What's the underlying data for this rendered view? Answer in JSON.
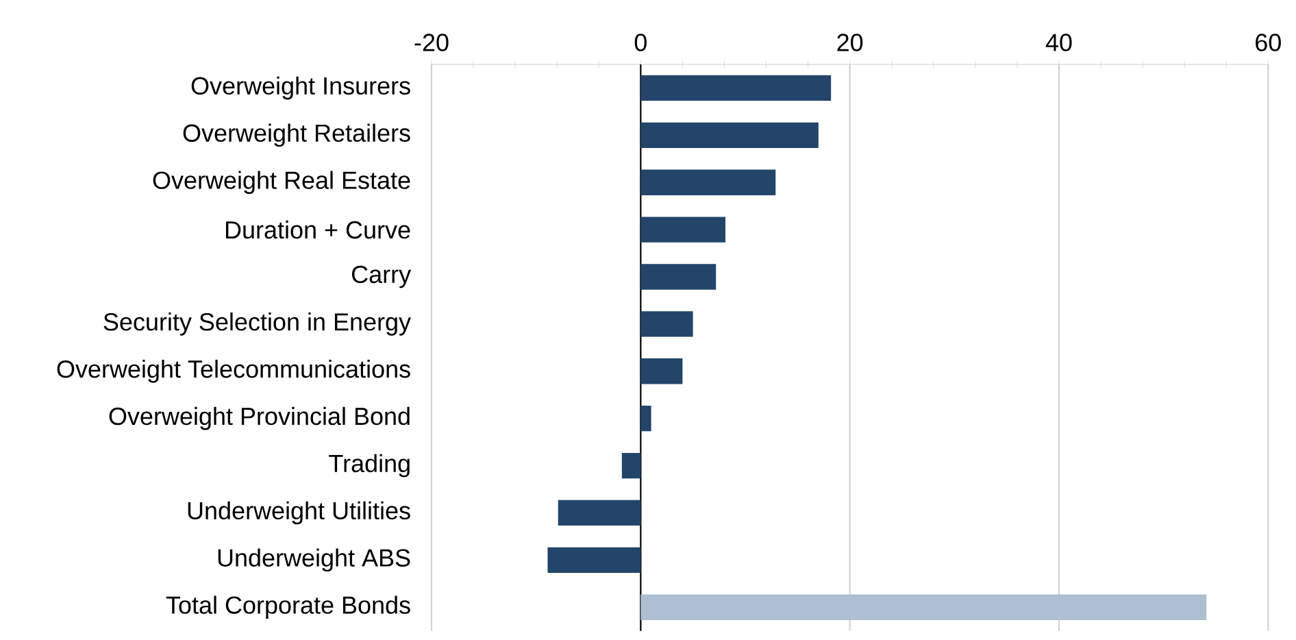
{
  "chart_data": {
    "type": "bar",
    "orientation": "horizontal",
    "categories": [
      "Overweight Insurers",
      "Overweight Retailers",
      "Overweight Real Estate",
      "Duration + Curve",
      "Carry",
      "Security Selection in Energy",
      "Overweight Telecommunications",
      "Overweight Provincial Bond",
      "Trading",
      "Underweight Utilities",
      "Underweight ABS",
      "Total Corporate Bonds"
    ],
    "values": [
      18.2,
      17.0,
      12.9,
      8.1,
      7.2,
      5.0,
      4.0,
      1.0,
      -1.8,
      -7.9,
      -8.9,
      54.1
    ],
    "colors": [
      "#23456a",
      "#23456a",
      "#23456a",
      "#23456a",
      "#23456a",
      "#23456a",
      "#23456a",
      "#23456a",
      "#23456a",
      "#23456a",
      "#23456a",
      "#adbfd1"
    ],
    "xlim": [
      -20,
      60
    ],
    "xticks": [
      -20,
      0,
      20,
      40,
      60
    ],
    "grid": "x"
  }
}
